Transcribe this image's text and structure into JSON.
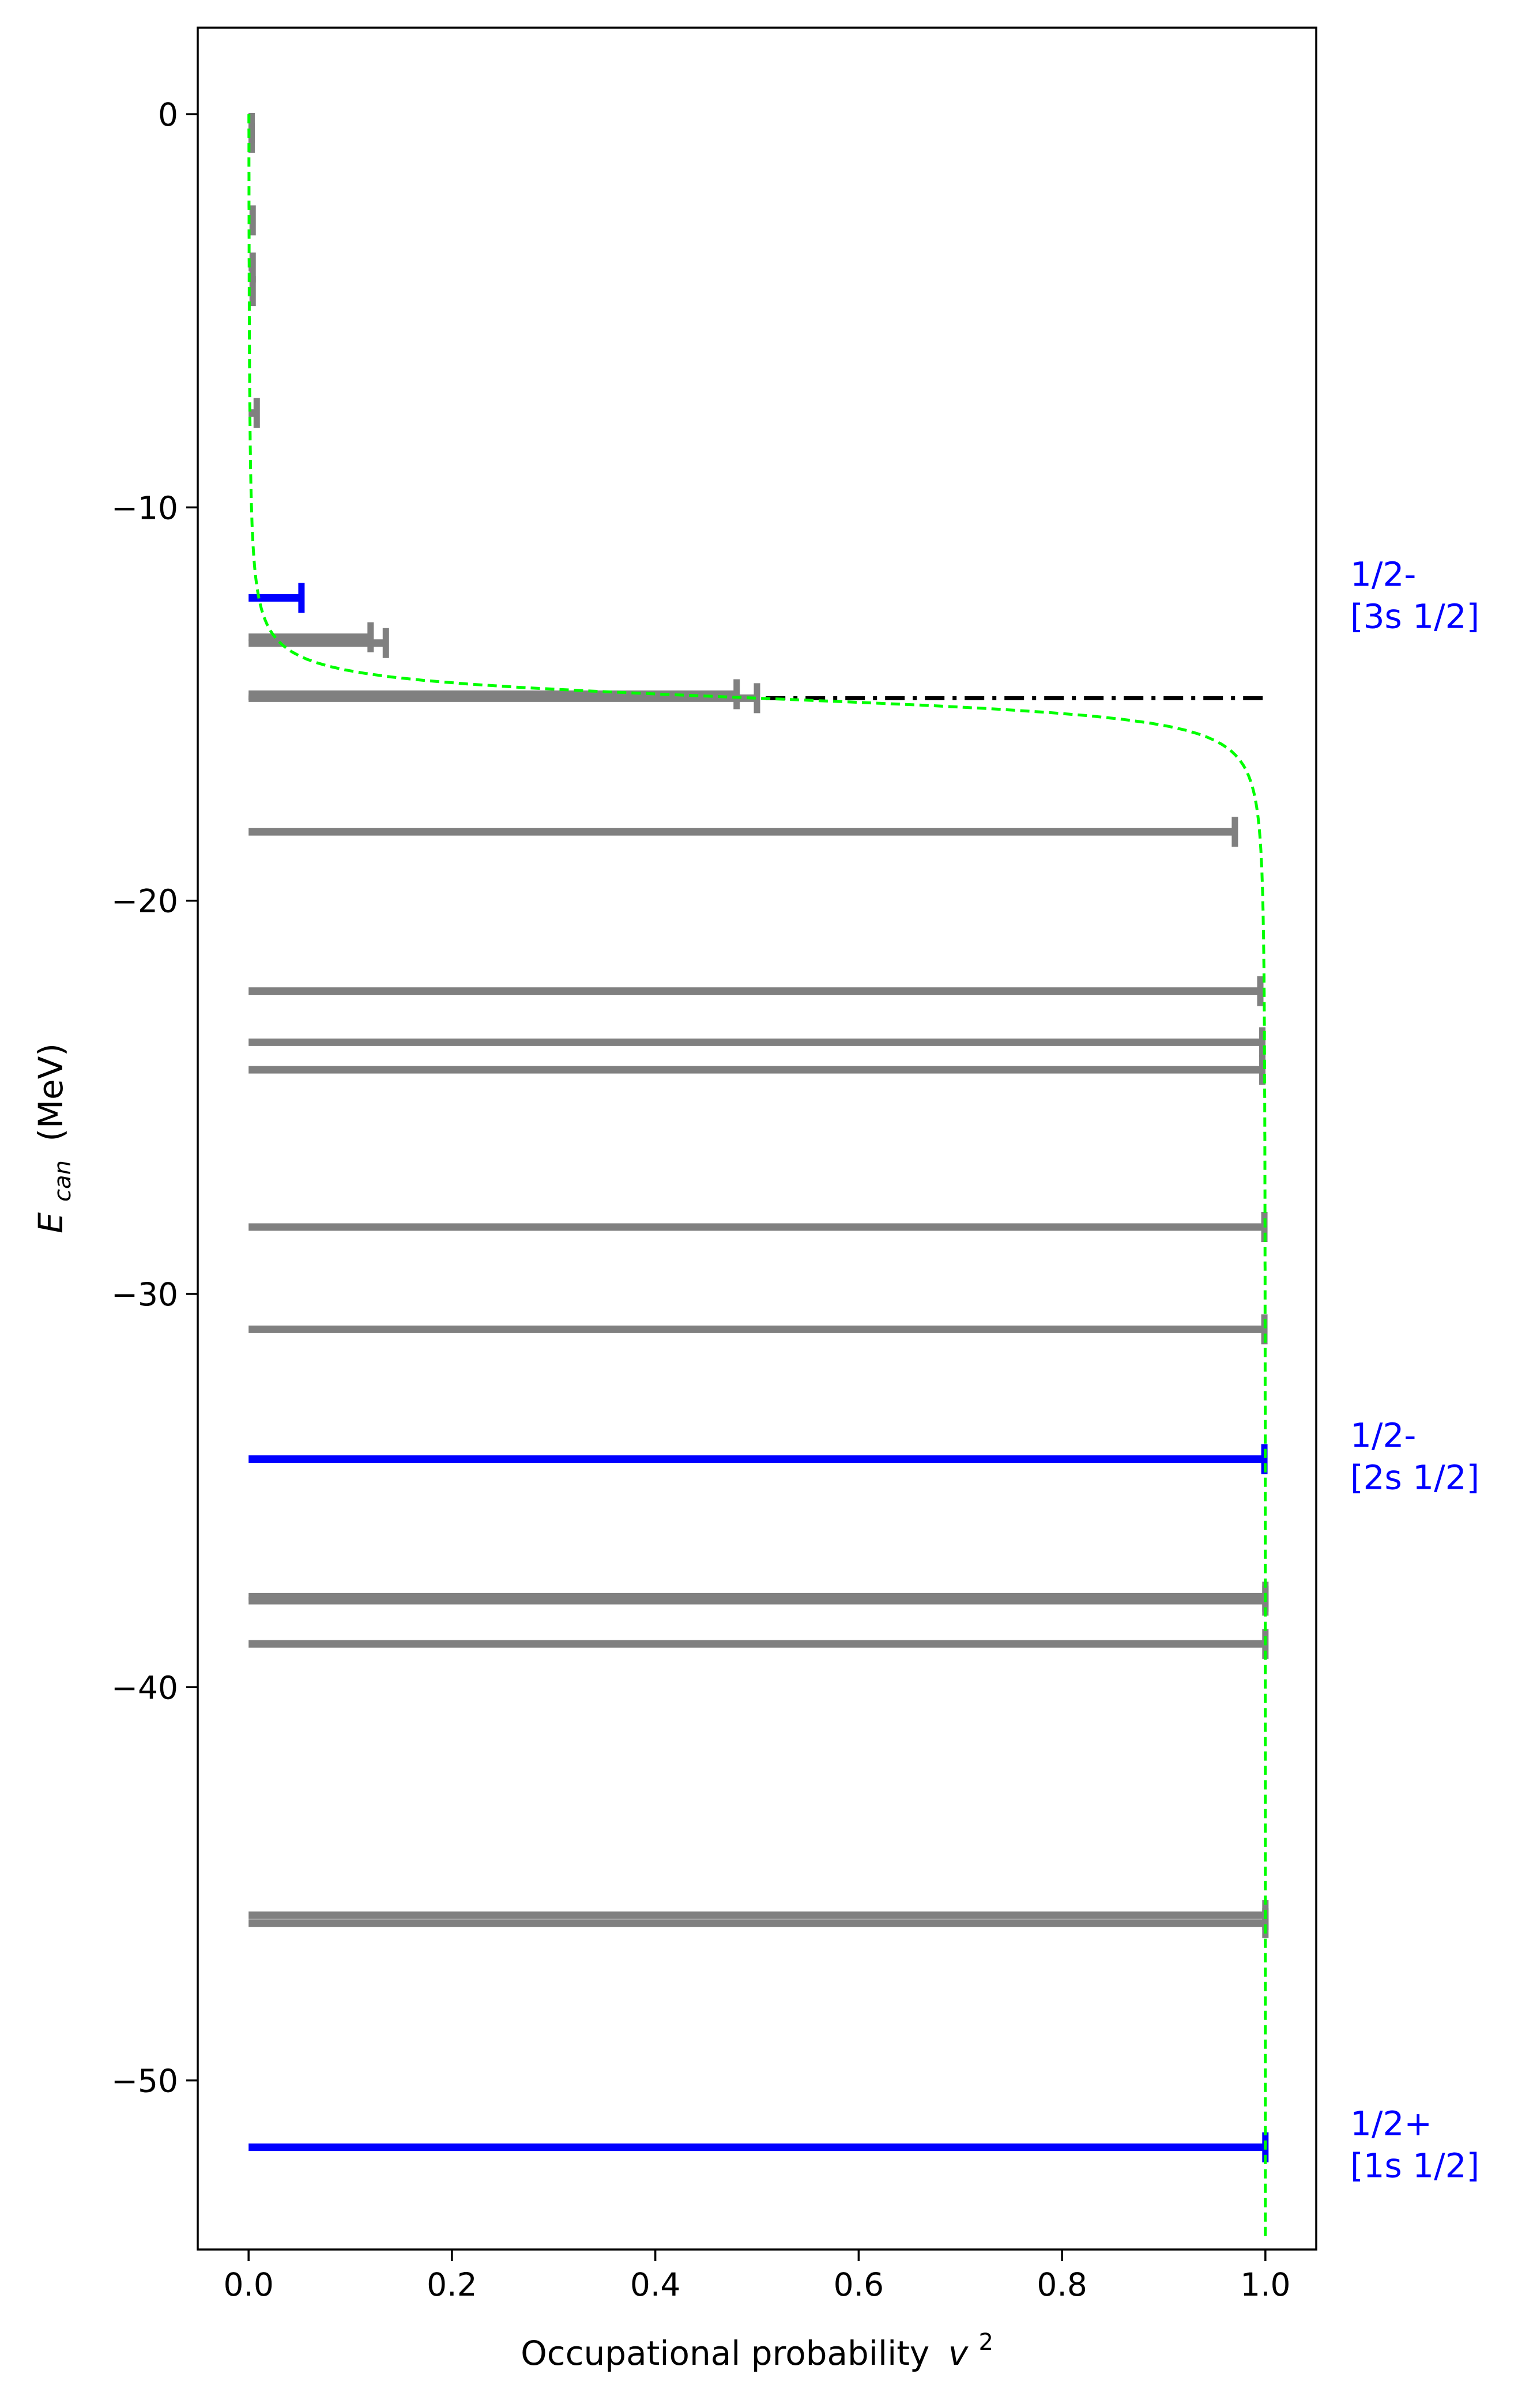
{
  "chart_data": {
    "type": "bar",
    "xlabel": "Occupational probability",
    "xlabel_symbol": "v",
    "xlabel_exponent": "2",
    "ylabel_symbol": "E",
    "ylabel_subscript": "can",
    "ylabel_unit": "(MeV)",
    "xlim": [
      -0.05,
      1.05
    ],
    "ylim": [
      -54.3,
      2.2
    ],
    "xticks": [
      0.0,
      0.2,
      0.4,
      0.6,
      0.8,
      1.0
    ],
    "xtick_labels": [
      "0.0",
      "0.2",
      "0.4",
      "0.6",
      "0.8",
      "1.0"
    ],
    "yticks": [
      0,
      -10,
      -20,
      -30,
      -40,
      -50
    ],
    "ytick_labels": [
      "0",
      "−10",
      "−20",
      "−30",
      "−40",
      "−50"
    ],
    "fermi_level": -14.85,
    "fermi_line_color": "#000000",
    "occupation_curve": {
      "color": "#00ff00",
      "fermi_energy": -14.85,
      "width": 0.52
    },
    "colors": {
      "grey": "#808080",
      "blue": "#0000ff",
      "green": "#00ff00",
      "black": "#000000"
    },
    "levels": [
      {
        "e": -0.35,
        "v2": 0.003,
        "color": "grey"
      },
      {
        "e": -0.6,
        "v2": 0.003,
        "color": "grey"
      },
      {
        "e": -2.7,
        "v2": 0.004,
        "color": "grey"
      },
      {
        "e": -3.9,
        "v2": 0.004,
        "color": "grey"
      },
      {
        "e": -4.5,
        "v2": 0.004,
        "color": "grey"
      },
      {
        "e": -7.6,
        "v2": 0.008,
        "color": "grey"
      },
      {
        "e": -12.3,
        "v2": 0.052,
        "color": "blue"
      },
      {
        "e": -13.3,
        "v2": 0.12,
        "color": "grey"
      },
      {
        "e": -13.45,
        "v2": 0.135,
        "color": "grey"
      },
      {
        "e": -14.75,
        "v2": 0.48,
        "color": "grey"
      },
      {
        "e": -14.85,
        "v2": 0.5,
        "color": "grey"
      },
      {
        "e": -18.25,
        "v2": 0.97,
        "color": "grey"
      },
      {
        "e": -22.3,
        "v2": 0.995,
        "color": "grey"
      },
      {
        "e": -23.6,
        "v2": 0.997,
        "color": "grey"
      },
      {
        "e": -24.3,
        "v2": 0.997,
        "color": "grey"
      },
      {
        "e": -28.3,
        "v2": 0.999,
        "color": "grey"
      },
      {
        "e": -30.9,
        "v2": 0.999,
        "color": "grey"
      },
      {
        "e": -34.2,
        "v2": 0.999,
        "color": "blue"
      },
      {
        "e": -37.7,
        "v2": 1.0,
        "color": "grey"
      },
      {
        "e": -37.8,
        "v2": 1.0,
        "color": "grey"
      },
      {
        "e": -38.9,
        "v2": 1.0,
        "color": "grey"
      },
      {
        "e": -45.8,
        "v2": 1.0,
        "color": "grey"
      },
      {
        "e": -46.0,
        "v2": 1.0,
        "color": "grey"
      },
      {
        "e": -51.7,
        "v2": 1.0,
        "color": "blue"
      }
    ],
    "annotations": [
      {
        "e": -12.3,
        "line1": "1/2-",
        "line2": "[3s 1/2]",
        "color": "blue"
      },
      {
        "e": -34.2,
        "line1": "1/2-",
        "line2": "[2s 1/2]",
        "color": "blue"
      },
      {
        "e": -51.7,
        "line1": "1/2+",
        "line2": "[1s 1/2]",
        "color": "blue"
      }
    ]
  }
}
